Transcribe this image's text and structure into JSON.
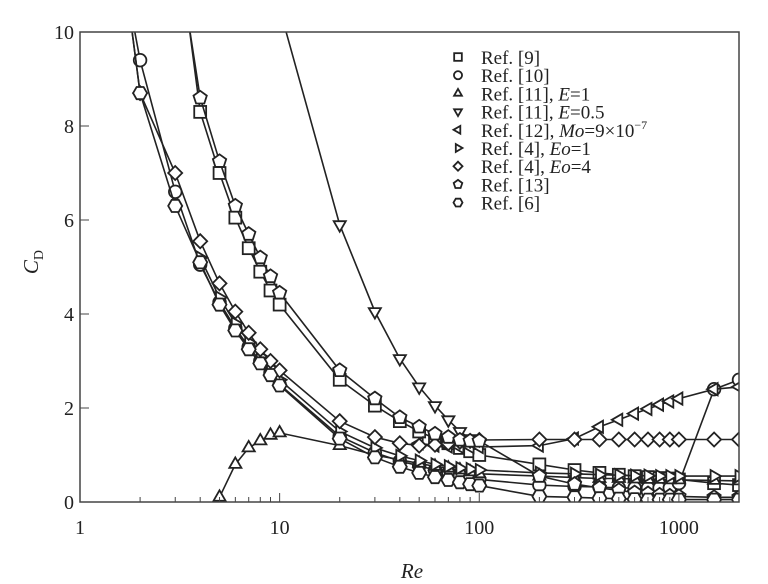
{
  "chart_data": {
    "type": "line",
    "title": "",
    "xlabel": "Re",
    "ylabel": "C",
    "ylabel_sub": "D",
    "xscale": "log",
    "xlim": [
      1,
      2000
    ],
    "ylim": [
      0,
      10
    ],
    "xticks": [
      1,
      10,
      100,
      1000
    ],
    "xtick_labels": [
      "1",
      "10",
      "100",
      "1000"
    ],
    "yticks": [
      0,
      2,
      4,
      6,
      8,
      10
    ],
    "ytick_labels": [
      "0",
      "2",
      "4",
      "6",
      "8",
      "10"
    ],
    "grid": false,
    "legend_position": "top-right",
    "colors": {
      "line": "#222222",
      "marker_fill": "#ffffff"
    },
    "series": [
      {
        "name": "Ref. [9]",
        "legend_parts": [
          {
            "t": "Ref. [9]"
          }
        ],
        "marker": "square",
        "x": [
          3.5,
          4,
          5,
          6,
          7,
          8,
          9,
          10,
          20,
          30,
          40,
          50,
          60,
          70,
          80,
          90,
          100,
          200,
          300,
          400,
          500,
          600,
          700,
          800,
          900,
          1000,
          1500,
          2000
        ],
        "y": [
          10.2,
          8.3,
          7.0,
          6.05,
          5.4,
          4.9,
          4.5,
          4.2,
          2.6,
          2.05,
          1.72,
          1.5,
          1.35,
          1.25,
          1.15,
          1.08,
          1.0,
          0.8,
          0.68,
          0.62,
          0.58,
          0.55,
          0.53,
          0.51,
          0.5,
          0.48,
          0.4,
          0.36
        ]
      },
      {
        "name": "Ref. [10]",
        "legend_parts": [
          {
            "t": "Ref. [10]"
          }
        ],
        "marker": "circle",
        "x": [
          1.7,
          2,
          3,
          4,
          5,
          6,
          7,
          8,
          9,
          10,
          20,
          30,
          40,
          50,
          60,
          70,
          80,
          90,
          100,
          200,
          300,
          400,
          500,
          600,
          700,
          800,
          900,
          1000,
          1500,
          2000
        ],
        "y": [
          11,
          9.4,
          6.6,
          5.05,
          4.25,
          3.7,
          3.3,
          3.0,
          2.75,
          2.5,
          1.4,
          1.05,
          0.87,
          0.77,
          0.68,
          0.62,
          0.57,
          0.52,
          0.48,
          0.36,
          0.33,
          0.32,
          0.3,
          0.3,
          0.3,
          0.3,
          0.3,
          0.4,
          2.4,
          2.6
        ]
      },
      {
        "name": "Ref. [11], E=1",
        "legend_parts": [
          {
            "t": "Ref. [11], "
          },
          {
            "t": "E",
            "i": true
          },
          {
            "t": "=1"
          }
        ],
        "marker": "triangle-up",
        "x": [
          5,
          6,
          7,
          8,
          9,
          10,
          20,
          30,
          40,
          50,
          60,
          70,
          80,
          90,
          100,
          200,
          300,
          400,
          500,
          600,
          700,
          800,
          900,
          1000,
          1500,
          2000
        ],
        "y": [
          0.1,
          0.8,
          1.15,
          1.3,
          1.42,
          1.47,
          1.2,
          1.0,
          0.9,
          0.82,
          0.76,
          0.72,
          0.68,
          0.64,
          0.6,
          0.55,
          0.52,
          0.5,
          0.5,
          0.49,
          0.48,
          0.48,
          0.47,
          0.47,
          0.46,
          0.45
        ]
      },
      {
        "name": "Ref. [11], E=0.5",
        "legend_parts": [
          {
            "t": "Ref. [11], "
          },
          {
            "t": "E",
            "i": true
          },
          {
            "t": "=0.5"
          }
        ],
        "marker": "triangle-down",
        "x": [
          10,
          20,
          30,
          40,
          50,
          60,
          70,
          80,
          90,
          100
        ],
        "y": [
          10.5,
          5.9,
          4.05,
          3.05,
          2.45,
          2.05,
          1.75,
          1.5,
          1.35,
          1.25
        ]
      },
      {
        "name": "Ref. [12], Mo=9×10−7",
        "legend_parts": [
          {
            "t": "Ref. [12], "
          },
          {
            "t": "Mo",
            "i": true
          },
          {
            "t": "=9×10"
          },
          {
            "t": "−7",
            "sup": true
          }
        ],
        "marker": "triangle-left",
        "x": [
          50,
          60,
          70,
          80,
          90,
          100,
          200,
          300,
          400,
          500,
          600,
          700,
          800,
          900,
          1000,
          1500,
          2000
        ],
        "y": [
          1.25,
          1.2,
          1.18,
          1.17,
          1.17,
          1.17,
          1.2,
          1.35,
          1.6,
          1.75,
          1.88,
          1.98,
          2.07,
          2.14,
          2.2,
          2.4,
          2.45
        ]
      },
      {
        "name": "Ref. [4], Eo=1",
        "legend_parts": [
          {
            "t": "Ref. [4], "
          },
          {
            "t": "Eo",
            "i": true
          },
          {
            "t": "=1"
          }
        ],
        "marker": "triangle-right",
        "x": [
          4,
          5,
          6,
          7,
          8,
          9,
          10,
          20,
          30,
          40,
          50,
          60,
          70,
          80,
          90,
          100,
          200,
          300,
          400,
          500,
          600,
          700,
          800,
          900,
          1000,
          1500,
          2000
        ],
        "y": [
          5.2,
          4.35,
          3.8,
          3.4,
          3.1,
          2.85,
          2.6,
          1.5,
          1.15,
          0.98,
          0.88,
          0.8,
          0.76,
          0.72,
          0.7,
          0.68,
          0.62,
          0.6,
          0.58,
          0.57,
          0.56,
          0.56,
          0.55,
          0.55,
          0.55,
          0.55,
          0.55
        ]
      },
      {
        "name": "Ref. [4], Eo=4",
        "legend_parts": [
          {
            "t": "Ref. [4], "
          },
          {
            "t": "Eo",
            "i": true
          },
          {
            "t": "=4"
          }
        ],
        "marker": "diamond",
        "x": [
          1.7,
          2,
          3,
          4,
          5,
          6,
          7,
          8,
          9,
          10,
          20,
          30,
          40,
          50,
          60,
          70,
          80,
          90,
          100,
          200,
          300,
          400,
          500,
          600,
          700,
          800,
          900,
          1000,
          1500,
          2000
        ],
        "y": [
          11,
          8.7,
          7.0,
          5.55,
          4.65,
          4.05,
          3.6,
          3.25,
          3.0,
          2.8,
          1.72,
          1.38,
          1.25,
          1.2,
          1.22,
          1.25,
          1.28,
          1.3,
          1.32,
          1.33,
          1.33,
          1.33,
          1.33,
          1.33,
          1.33,
          1.33,
          1.33,
          1.33,
          1.33,
          1.33
        ]
      },
      {
        "name": "Ref. [13]",
        "legend_parts": [
          {
            "t": "Ref. [13]"
          }
        ],
        "marker": "pentagon",
        "x": [
          3.5,
          4,
          5,
          6,
          7,
          8,
          9,
          10,
          20,
          30,
          40,
          50,
          60,
          70,
          80,
          90,
          100,
          200,
          300,
          400,
          500,
          600,
          700,
          800,
          900,
          1000,
          1500,
          2000
        ],
        "y": [
          10.2,
          8.6,
          7.25,
          6.3,
          5.7,
          5.2,
          4.8,
          4.45,
          2.8,
          2.2,
          1.8,
          1.6,
          1.45,
          1.38,
          1.32,
          1.3,
          1.3,
          0.55,
          0.38,
          0.3,
          0.25,
          0.2,
          0.18,
          0.15,
          0.13,
          0.12,
          0.1,
          0.1
        ]
      },
      {
        "name": "Ref. [6]",
        "legend_parts": [
          {
            "t": "Ref. [6]"
          }
        ],
        "marker": "hexagon",
        "x": [
          1.7,
          2,
          3,
          4,
          5,
          6,
          7,
          8,
          9,
          10,
          20,
          30,
          40,
          50,
          60,
          70,
          80,
          90,
          100,
          200,
          300,
          400,
          500,
          600,
          700,
          800,
          900,
          1000,
          1500,
          2000
        ],
        "y": [
          11,
          8.7,
          6.3,
          5.1,
          4.2,
          3.65,
          3.25,
          2.95,
          2.7,
          2.48,
          1.35,
          0.95,
          0.75,
          0.62,
          0.53,
          0.47,
          0.42,
          0.38,
          0.35,
          0.12,
          0.1,
          0.08,
          0.07,
          0.06,
          0.05,
          0.05,
          0.05,
          0.05,
          0.05,
          0.05
        ]
      }
    ]
  }
}
